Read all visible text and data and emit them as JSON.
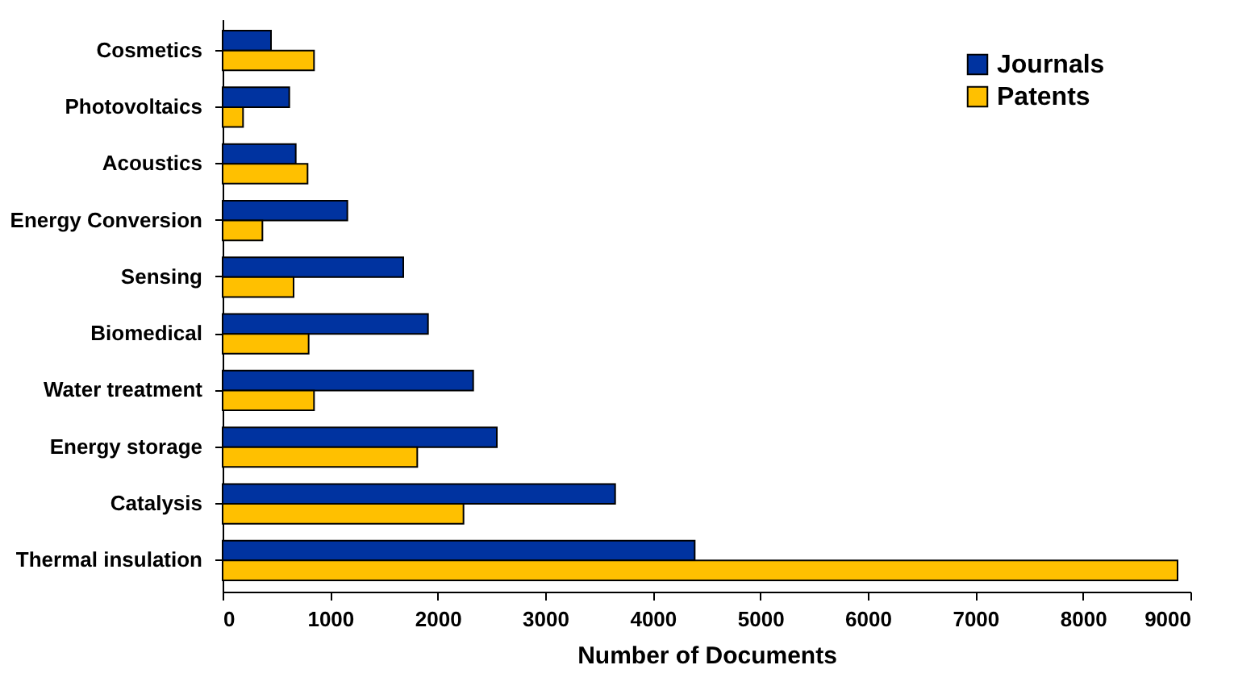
{
  "chart_data": {
    "type": "bar",
    "orientation": "horizontal",
    "xlabel": "Number of Documents",
    "categories": [
      "Cosmetics",
      "Photovoltaics",
      "Acoustics",
      "Energy Conversion",
      "Sensing",
      "Biomedical",
      "Water treatment",
      "Energy storage",
      "Catalysis",
      "Thermal insulation"
    ],
    "series": [
      {
        "name": "Journals",
        "color": "#0033a0",
        "values": [
          450,
          620,
          680,
          1160,
          1680,
          1910,
          2330,
          2550,
          3650,
          4390
        ]
      },
      {
        "name": "Patents",
        "color": "#ffc000",
        "values": [
          850,
          190,
          790,
          370,
          660,
          800,
          850,
          1810,
          2240,
          8880
        ]
      }
    ],
    "xlim": [
      0,
      9000
    ],
    "xticks": [
      0,
      1000,
      2000,
      3000,
      4000,
      5000,
      6000,
      7000,
      8000,
      9000
    ],
    "legend": "top right",
    "grid": false
  }
}
